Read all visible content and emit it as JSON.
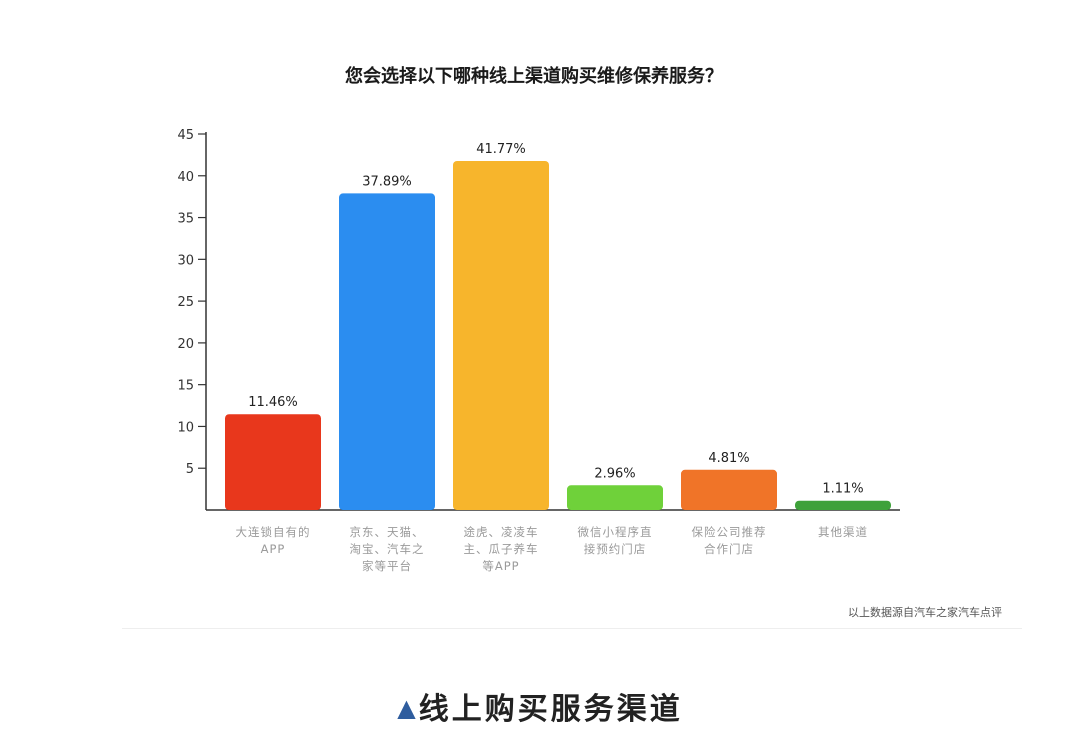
{
  "chart_data": {
    "type": "bar",
    "title": "您会选择以下哪种线上渠道购买维修保养服务？",
    "xlabel": "",
    "ylabel": "",
    "ylim": [
      0,
      45
    ],
    "yticks": [
      5,
      10,
      15,
      20,
      25,
      30,
      35,
      40,
      45
    ],
    "categories": [
      [
        "大连锁自有的",
        "APP"
      ],
      [
        "京东、天猫、",
        "淘宝、汽车之",
        "家等平台"
      ],
      [
        "途虎、凌凌车",
        "主、瓜子养车",
        "等APP"
      ],
      [
        "微信小程序直",
        "接预约门店"
      ],
      [
        "保险公司推荐",
        "合作门店"
      ],
      [
        "其他渠道"
      ]
    ],
    "values": [
      11.46,
      37.89,
      41.77,
      2.96,
      4.81,
      1.11
    ],
    "data_labels": [
      "11.46%",
      "37.89%",
      "41.77%",
      "2.96%",
      "4.81%",
      "1.11%"
    ],
    "colors": [
      "#e8371c",
      "#2b8df0",
      "#f7b52c",
      "#6fd13a",
      "#f07428",
      "#3ea13a"
    ],
    "grid": false,
    "legend": "none",
    "source_note": "以上数据源自汽车之家汽车点评"
  },
  "caption": {
    "marker": "▲",
    "text": "线上购买服务渠道"
  }
}
